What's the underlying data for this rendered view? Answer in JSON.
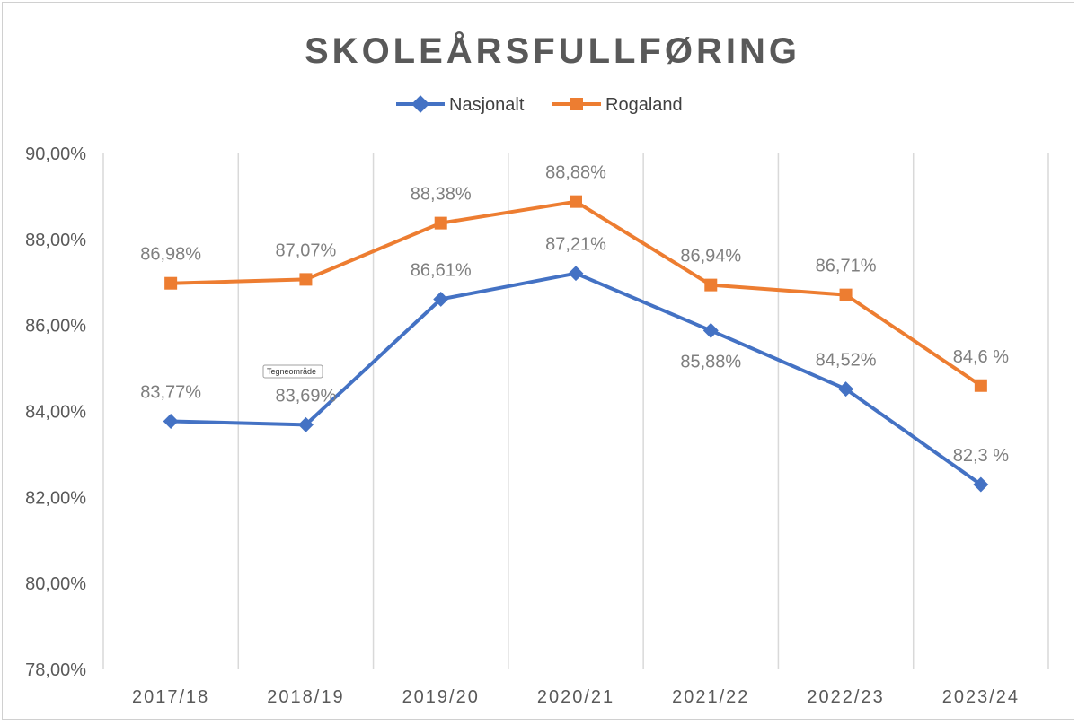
{
  "chart_data": {
    "type": "line",
    "title": "SKOLEÅRSFULLFØRING",
    "categories": [
      "2017/18",
      "2018/19",
      "2019/20",
      "2020/21",
      "2021/22",
      "2022/23",
      "2023/24"
    ],
    "ylim": [
      78,
      90
    ],
    "yticks": [
      {
        "value": 78,
        "label": "78,00%"
      },
      {
        "value": 80,
        "label": "80,00%"
      },
      {
        "value": 82,
        "label": "82,00%"
      },
      {
        "value": 84,
        "label": "84,00%"
      },
      {
        "value": 86,
        "label": "86,00%"
      },
      {
        "value": 88,
        "label": "88,00%"
      },
      {
        "value": 90,
        "label": "90,00%"
      }
    ],
    "grid": "vertical",
    "legend_position": "top-center",
    "series": [
      {
        "name": "Nasjonalt",
        "color": "#4472C4",
        "marker": "diamond",
        "values": [
          83.77,
          83.69,
          86.61,
          87.21,
          85.88,
          84.52,
          82.3
        ],
        "labels": [
          "83,77%",
          "83,69%",
          "86,61%",
          "87,21%",
          "85,88%",
          "84,52%",
          "82,3 %"
        ],
        "label_positions": [
          "above",
          "above",
          "above",
          "above",
          "below",
          "above",
          "above"
        ]
      },
      {
        "name": "Rogaland",
        "color": "#ED7D31",
        "marker": "square",
        "values": [
          86.98,
          87.07,
          88.38,
          88.88,
          86.94,
          86.71,
          84.6
        ],
        "labels": [
          "86,98%",
          "87,07%",
          "88,38%",
          "88,88%",
          "86,94%",
          "86,71%",
          "84,6 %"
        ],
        "label_positions": [
          "above",
          "above",
          "above",
          "above",
          "above",
          "above",
          "above"
        ]
      }
    ]
  },
  "tooltip": {
    "text": "Tegneområde"
  }
}
